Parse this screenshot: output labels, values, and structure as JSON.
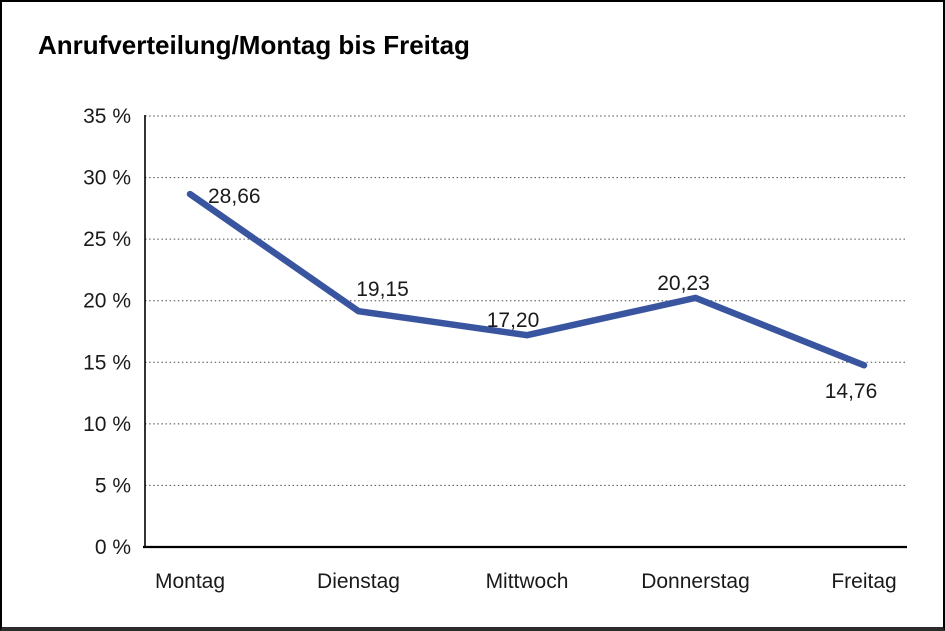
{
  "chart_data": {
    "type": "line",
    "title": "Anrufverteilung/Montag bis Freitag",
    "categories": [
      "Montag",
      "Dienstag",
      "Mittwoch",
      "Donnerstag",
      "Freitag"
    ],
    "values": [
      28.66,
      19.15,
      17.2,
      20.23,
      14.76
    ],
    "value_labels": [
      "28,66",
      "19,15",
      "17,20",
      "20,23",
      "14,76"
    ],
    "xlabel": "",
    "ylabel": "",
    "ylim": [
      0,
      35
    ],
    "ytick_step": 5,
    "ytick_labels": [
      "0 %",
      "5 %",
      "10 %",
      "15 %",
      "20 %",
      "25 %",
      "30 %",
      "35 %"
    ],
    "grid": "horizontal-dotted",
    "legend": "none",
    "series_name": "Anrufverteilung",
    "line_color": "#3a55a0"
  },
  "colors": {
    "line": "#3a55a0",
    "axis": "#000000",
    "grid": "#4d4d4d",
    "text": "#1a1a1a",
    "background": "#ffffff",
    "frame_border": "#000000"
  }
}
